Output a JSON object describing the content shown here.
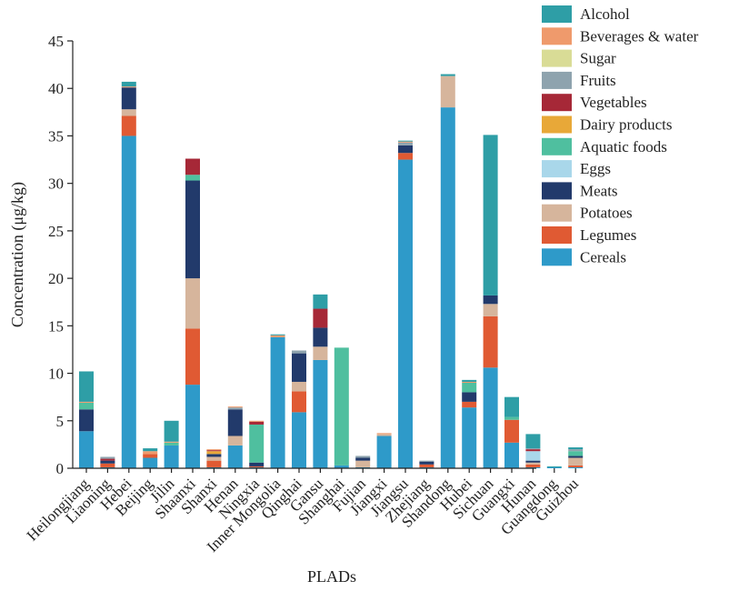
{
  "chart_data": {
    "type": "bar",
    "stacked": true,
    "title": "",
    "xlabel": "PLADs",
    "ylabel": "Concentration (μg/kg)",
    "ylim": [
      0,
      45
    ],
    "yticks": [
      0,
      5,
      10,
      15,
      20,
      25,
      30,
      35,
      40,
      45
    ],
    "grid": false,
    "legend_position": "top-right",
    "categories": [
      "Heilongjiang",
      "Liaoning",
      "Hebei",
      "Beijing",
      "Jilin",
      "Shaanxi",
      "Shanxi",
      "Henan",
      "Ningxia",
      "Inner Mongolia",
      "Qinghai",
      "Gansu",
      "Shanghai",
      "Fujian",
      "Jiangxi",
      "Jiangsu",
      "Zhejiang",
      "Shandong",
      "Hubei",
      "Sichuan",
      "Guangxi",
      "Hunan",
      "Guangdong",
      "Guizhou"
    ],
    "series": [
      {
        "name": "Cereals",
        "color": "#2E9AC9",
        "values": [
          3.9,
          0.1,
          35.0,
          1.1,
          2.4,
          8.8,
          0.1,
          2.4,
          0.1,
          13.8,
          5.9,
          11.4,
          0.3,
          0.1,
          3.4,
          32.5,
          0.1,
          38.0,
          6.4,
          10.6,
          2.7,
          0.1,
          0.1,
          0.1
        ]
      },
      {
        "name": "Legumes",
        "color": "#E05A33",
        "values": [
          0.0,
          0.4,
          2.1,
          0.4,
          0.0,
          5.9,
          0.7,
          0.0,
          0.1,
          0.0,
          2.2,
          0.0,
          0.0,
          0.0,
          0.0,
          0.7,
          0.3,
          0.0,
          0.6,
          5.4,
          2.4,
          0.3,
          0.0,
          0.2
        ]
      },
      {
        "name": "Potatoes",
        "color": "#D6B59C",
        "values": [
          0.0,
          0.0,
          0.7,
          0.0,
          0.0,
          5.3,
          0.4,
          1.0,
          0.0,
          0.0,
          1.0,
          1.4,
          0.0,
          0.7,
          0.2,
          0.0,
          0.0,
          3.3,
          0.0,
          1.3,
          0.0,
          0.2,
          0.0,
          0.8
        ]
      },
      {
        "name": "Meats",
        "color": "#223A6B",
        "values": [
          2.3,
          0.3,
          2.3,
          0.0,
          0.0,
          10.3,
          0.3,
          2.8,
          0.4,
          0.0,
          3.0,
          2.0,
          0.0,
          0.3,
          0.0,
          0.8,
          0.3,
          0.0,
          1.0,
          0.9,
          0.0,
          0.2,
          0.0,
          0.2
        ]
      },
      {
        "name": "Eggs",
        "color": "#A9D7EA",
        "values": [
          0.0,
          0.0,
          0.0,
          0.0,
          0.0,
          0.0,
          0.0,
          0.0,
          0.0,
          0.0,
          0.0,
          0.0,
          0.0,
          0.0,
          0.0,
          0.0,
          0.0,
          0.0,
          0.0,
          0.0,
          0.0,
          1.0,
          0.0,
          0.0
        ]
      },
      {
        "name": "Aquatic foods",
        "color": "#4FBF9F",
        "values": [
          0.7,
          0.0,
          0.0,
          0.0,
          0.3,
          0.6,
          0.0,
          0.0,
          4.0,
          0.0,
          0.0,
          0.0,
          12.4,
          0.0,
          0.0,
          0.0,
          0.0,
          0.0,
          1.0,
          0.0,
          0.3,
          0.0,
          0.0,
          0.5
        ]
      },
      {
        "name": "Dairy products",
        "color": "#E8A838",
        "values": [
          0.0,
          0.0,
          0.0,
          0.0,
          0.0,
          0.0,
          0.3,
          0.0,
          0.0,
          0.0,
          0.0,
          0.0,
          0.0,
          0.0,
          0.0,
          0.0,
          0.0,
          0.0,
          0.0,
          0.0,
          0.0,
          0.0,
          0.0,
          0.0
        ]
      },
      {
        "name": "Vegetables",
        "color": "#A62837",
        "values": [
          0.0,
          0.2,
          0.0,
          0.0,
          0.0,
          1.7,
          0.1,
          0.0,
          0.3,
          0.0,
          0.0,
          2.0,
          0.0,
          0.0,
          0.0,
          0.0,
          0.0,
          0.0,
          0.0,
          0.0,
          0.0,
          0.2,
          0.0,
          0.0
        ]
      },
      {
        "name": "Fruits",
        "color": "#8EA3AE",
        "values": [
          0.0,
          0.2,
          0.0,
          0.0,
          0.0,
          0.0,
          0.0,
          0.2,
          0.0,
          0.0,
          0.3,
          0.0,
          0.0,
          0.2,
          0.0,
          0.3,
          0.1,
          0.0,
          0.0,
          0.0,
          0.0,
          0.1,
          0.0,
          0.2
        ]
      },
      {
        "name": "Sugar",
        "color": "#D9DC96",
        "values": [
          0.0,
          0.0,
          0.0,
          0.0,
          0.0,
          0.0,
          0.0,
          0.0,
          0.0,
          0.0,
          0.0,
          0.0,
          0.0,
          0.0,
          0.0,
          0.0,
          0.0,
          0.0,
          0.0,
          0.0,
          0.0,
          0.0,
          0.0,
          0.0
        ]
      },
      {
        "name": "Beverages & water",
        "color": "#EF9A6C",
        "values": [
          0.1,
          0.0,
          0.1,
          0.3,
          0.1,
          0.0,
          0.1,
          0.1,
          0.1,
          0.2,
          0.0,
          0.0,
          0.0,
          0.0,
          0.1,
          0.1,
          0.0,
          0.0,
          0.1,
          0.0,
          0.0,
          0.0,
          0.0,
          0.0
        ]
      },
      {
        "name": "Alcohol",
        "color": "#2E9EA6",
        "values": [
          3.2,
          0.0,
          0.5,
          0.3,
          2.2,
          0.0,
          0.0,
          0.0,
          0.0,
          0.1,
          0.0,
          1.5,
          0.0,
          0.0,
          0.0,
          0.1,
          0.0,
          0.2,
          0.2,
          16.9,
          2.1,
          1.5,
          0.1,
          0.2
        ]
      }
    ]
  }
}
